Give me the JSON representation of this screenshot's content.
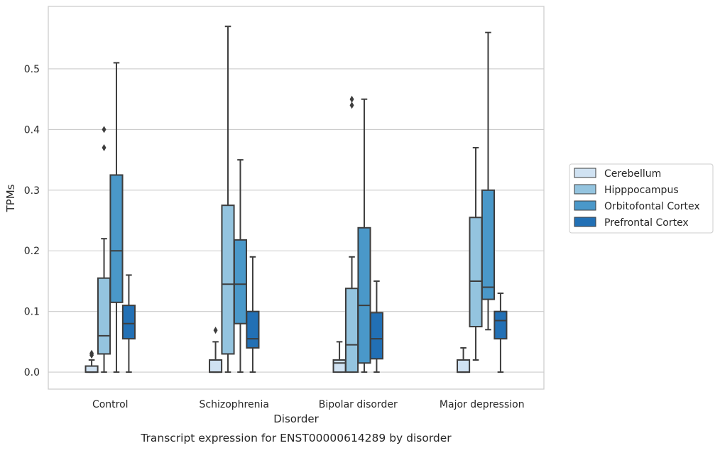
{
  "chart_data": {
    "type": "boxplot",
    "caption": "Transcript expression for ENST00000614289 by disorder",
    "xlabel": "Disorder",
    "ylabel": "TPMs",
    "ylim": [
      -0.028,
      0.603
    ],
    "yticks": [
      0.0,
      0.1,
      0.2,
      0.3,
      0.4,
      0.5
    ],
    "ytick_labels": [
      "0.0",
      "0.1",
      "0.2",
      "0.3",
      "0.4",
      "0.5"
    ],
    "grid": "horizontal",
    "legend_position": "right",
    "categories": [
      "Control",
      "Schizophrenia",
      "Bipolar disorder",
      "Major depression"
    ],
    "series": [
      {
        "name": "Cerebellum",
        "color": "#d0e2f2",
        "boxes": [
          {
            "whislo": 0.0,
            "q1": 0.0,
            "med": 0.0,
            "q3": 0.01,
            "whishi": 0.02,
            "fliers": [
              0.028,
              0.031
            ]
          },
          {
            "whislo": 0.0,
            "q1": 0.0,
            "med": 0.0,
            "q3": 0.02,
            "whishi": 0.05,
            "fliers": [
              0.069
            ]
          },
          {
            "whislo": 0.0,
            "q1": 0.0,
            "med": 0.015,
            "q3": 0.02,
            "whishi": 0.05,
            "fliers": []
          },
          {
            "whislo": 0.0,
            "q1": 0.0,
            "med": 0.0,
            "q3": 0.02,
            "whishi": 0.04,
            "fliers": []
          }
        ]
      },
      {
        "name": "Hipppocampus",
        "color": "#94c4df",
        "boxes": [
          {
            "whislo": 0.0,
            "q1": 0.03,
            "med": 0.06,
            "q3": 0.155,
            "whishi": 0.22,
            "fliers": [
              0.37,
              0.4
            ]
          },
          {
            "whislo": 0.0,
            "q1": 0.03,
            "med": 0.145,
            "q3": 0.275,
            "whishi": 0.57,
            "fliers": []
          },
          {
            "whislo": 0.0,
            "q1": 0.0,
            "med": 0.045,
            "q3": 0.138,
            "whishi": 0.19,
            "fliers": [
              0.44,
              0.45
            ]
          },
          {
            "whislo": 0.02,
            "q1": 0.075,
            "med": 0.15,
            "q3": 0.255,
            "whishi": 0.37,
            "fliers": []
          }
        ]
      },
      {
        "name": "Orbitofontal Cortex",
        "color": "#4a98c9",
        "boxes": [
          {
            "whislo": 0.0,
            "q1": 0.115,
            "med": 0.2,
            "q3": 0.325,
            "whishi": 0.51,
            "fliers": []
          },
          {
            "whislo": 0.0,
            "q1": 0.08,
            "med": 0.145,
            "q3": 0.218,
            "whishi": 0.35,
            "fliers": []
          },
          {
            "whislo": 0.0,
            "q1": 0.015,
            "med": 0.11,
            "q3": 0.238,
            "whishi": 0.45,
            "fliers": []
          },
          {
            "whislo": 0.07,
            "q1": 0.12,
            "med": 0.14,
            "q3": 0.3,
            "whishi": 0.56,
            "fliers": []
          }
        ]
      },
      {
        "name": "Prefrontal Cortex",
        "color": "#2270b5",
        "boxes": [
          {
            "whislo": 0.0,
            "q1": 0.055,
            "med": 0.08,
            "q3": 0.11,
            "whishi": 0.16,
            "fliers": []
          },
          {
            "whislo": 0.0,
            "q1": 0.04,
            "med": 0.055,
            "q3": 0.1,
            "whishi": 0.19,
            "fliers": []
          },
          {
            "whislo": 0.0,
            "q1": 0.022,
            "med": 0.055,
            "q3": 0.098,
            "whishi": 0.15,
            "fliers": []
          },
          {
            "whislo": 0.0,
            "q1": 0.055,
            "med": 0.085,
            "q3": 0.1,
            "whishi": 0.13,
            "fliers": []
          }
        ]
      }
    ]
  }
}
